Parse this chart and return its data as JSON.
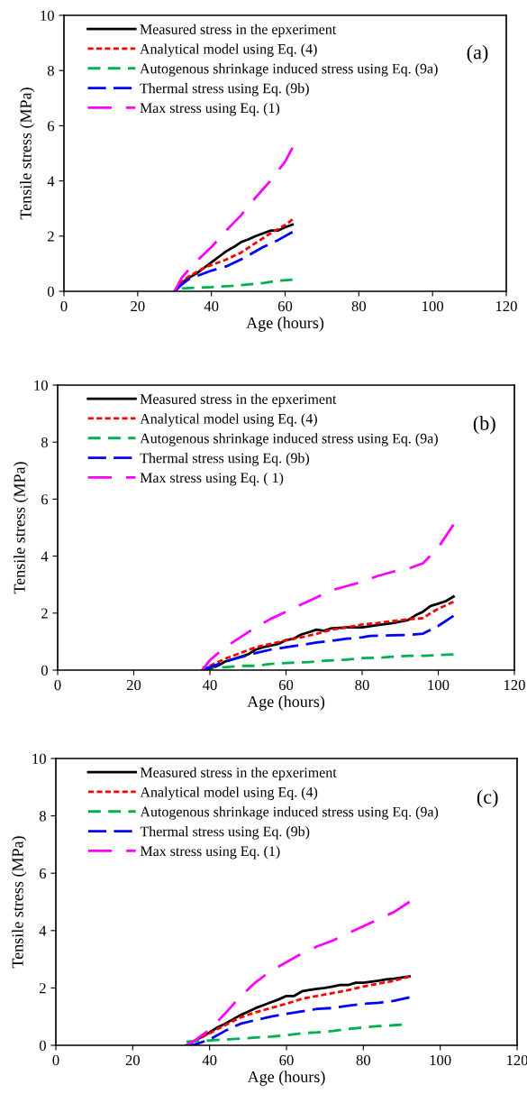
{
  "chart_data": [
    {
      "type": "line",
      "xlabel": "Age (hours)",
      "ylabel": "Tensile stress (MPa)",
      "xlim": [
        0,
        120
      ],
      "xticks": [
        0,
        20,
        40,
        60,
        80,
        100,
        120
      ],
      "ylim": [
        0,
        10
      ],
      "yticks": [
        0,
        2,
        4,
        6,
        8,
        10
      ],
      "legend": "top",
      "grid": false,
      "annotations": [
        "(a)"
      ],
      "series": [
        {
          "name": "Measured stress in the epxeriment",
          "color": "#000000",
          "line_style": "solid",
          "x": [
            30,
            32,
            34,
            36,
            38,
            40,
            42,
            44,
            46,
            48,
            50,
            52,
            54,
            56,
            58,
            60,
            62
          ],
          "values": [
            0,
            0.3,
            0.5,
            0.65,
            0.85,
            1.05,
            1.25,
            1.45,
            1.6,
            1.78,
            1.88,
            2.0,
            2.1,
            2.2,
            2.2,
            2.32,
            2.42
          ]
        },
        {
          "name": "Analytical model using Eq. (4)",
          "color": "#ff0000",
          "line_style": "dotted",
          "x": [
            30,
            32,
            34,
            36,
            38,
            40,
            44,
            48,
            52,
            56,
            60,
            62
          ],
          "values": [
            0,
            0.35,
            0.55,
            0.7,
            0.85,
            0.95,
            1.15,
            1.4,
            1.75,
            2.1,
            2.4,
            2.6
          ]
        },
        {
          "name": "Autogenous shrinkage induced stress using Eq. (9a)",
          "color": "#00b050",
          "line_style": "dashed",
          "x": [
            32,
            34,
            40,
            46,
            50,
            54,
            58,
            62
          ],
          "values": [
            0.1,
            0.12,
            0.15,
            0.2,
            0.25,
            0.3,
            0.38,
            0.42
          ]
        },
        {
          "name": "Thermal stress using Eq. (9b)",
          "color": "#0000ff",
          "line_style": "dashed",
          "x": [
            30,
            32,
            34,
            36,
            40,
            44,
            48,
            50,
            54,
            58,
            62
          ],
          "values": [
            0,
            0.25,
            0.45,
            0.55,
            0.75,
            0.9,
            1.15,
            1.3,
            1.6,
            1.85,
            2.15
          ]
        },
        {
          "name": "Max stress using Eq. (1)",
          "color": "#ff00ff",
          "line_style": "dashed",
          "x": [
            30,
            32,
            34,
            36,
            40,
            44,
            48,
            52,
            56,
            60,
            62
          ],
          "values": [
            0,
            0.5,
            0.8,
            1.1,
            1.6,
            2.2,
            2.75,
            3.4,
            4.0,
            4.7,
            5.2
          ]
        }
      ]
    },
    {
      "type": "line",
      "xlabel": "Age (hours)",
      "ylabel": "Tensile stress (MPa)",
      "xlim": [
        0,
        120
      ],
      "xticks": [
        0,
        20,
        40,
        60,
        80,
        100,
        120
      ],
      "ylim": [
        0,
        10
      ],
      "yticks": [
        0,
        2,
        4,
        6,
        8,
        10
      ],
      "legend": "top",
      "grid": false,
      "annotations": [
        "(b)"
      ],
      "series": [
        {
          "name": "Measured stress in the epxeriment",
          "color": "#000000",
          "line_style": "solid",
          "x": [
            38,
            40,
            42,
            44,
            46,
            50,
            52,
            54,
            58,
            60,
            62,
            64,
            66,
            68,
            70,
            72,
            76,
            80,
            84,
            88,
            92,
            94,
            96,
            98,
            100,
            102,
            104
          ],
          "values": [
            0,
            0.05,
            0.15,
            0.3,
            0.38,
            0.55,
            0.72,
            0.8,
            0.92,
            1.05,
            1.1,
            1.25,
            1.33,
            1.42,
            1.38,
            1.47,
            1.5,
            1.5,
            1.58,
            1.65,
            1.75,
            1.92,
            2.05,
            2.25,
            2.33,
            2.42,
            2.58
          ]
        },
        {
          "name": "Analytical model using Eq. (4)",
          "color": "#ff0000",
          "line_style": "dotted",
          "x": [
            38,
            40,
            44,
            48,
            52,
            56,
            60,
            64,
            68,
            72,
            76,
            80,
            84,
            88,
            92,
            96,
            98,
            100,
            104
          ],
          "values": [
            0,
            0.15,
            0.4,
            0.6,
            0.8,
            0.92,
            1.05,
            1.15,
            1.27,
            1.42,
            1.5,
            1.6,
            1.65,
            1.72,
            1.78,
            1.82,
            2.0,
            2.15,
            2.4
          ]
        },
        {
          "name": "Autogenous shrinkage induced stress using Eq. (9a)",
          "color": "#00b050",
          "line_style": "dashed",
          "x": [
            38,
            44,
            48,
            52,
            56,
            60,
            66,
            70,
            76,
            80,
            84,
            88,
            92,
            96,
            100,
            104
          ],
          "values": [
            0.1,
            0.1,
            0.15,
            0.15,
            0.22,
            0.25,
            0.28,
            0.33,
            0.37,
            0.42,
            0.43,
            0.47,
            0.5,
            0.5,
            0.53,
            0.55
          ]
        },
        {
          "name": "Thermal stress using Eq. (9b)",
          "color": "#0000ff",
          "line_style": "dashed",
          "x": [
            38,
            40,
            44,
            48,
            52,
            56,
            60,
            64,
            68,
            72,
            76,
            80,
            82,
            88,
            92,
            96,
            100,
            104
          ],
          "values": [
            0,
            0.1,
            0.3,
            0.45,
            0.6,
            0.72,
            0.8,
            0.88,
            0.97,
            1.03,
            1.1,
            1.15,
            1.2,
            1.22,
            1.23,
            1.28,
            1.55,
            1.9
          ]
        },
        {
          "name": "Max stress using Eq. ( 1)",
          "color": "#ff00ff",
          "line_style": "dashed",
          "x": [
            38,
            40,
            44,
            48,
            52,
            56,
            60,
            64,
            68,
            72,
            76,
            80,
            84,
            88,
            92,
            96,
            100,
            104
          ],
          "values": [
            0,
            0.35,
            0.8,
            1.15,
            1.5,
            1.8,
            2.05,
            2.3,
            2.55,
            2.8,
            2.95,
            3.1,
            3.3,
            3.45,
            3.55,
            3.75,
            4.3,
            5.1
          ]
        }
      ]
    },
    {
      "type": "line",
      "xlabel": "Age (hours)",
      "ylabel": "Tensile stress (MPa)",
      "xlim": [
        0,
        120
      ],
      "xticks": [
        0,
        20,
        40,
        60,
        80,
        100,
        120
      ],
      "ylim": [
        0,
        10
      ],
      "yticks": [
        0,
        2,
        4,
        6,
        8,
        10
      ],
      "legend": "top",
      "grid": false,
      "annotations": [
        "(c)"
      ],
      "series": [
        {
          "name": "Measured stress in the epxeriment",
          "color": "#000000",
          "line_style": "solid",
          "x": [
            34,
            36,
            38,
            40,
            42,
            44,
            46,
            48,
            50,
            52,
            54,
            56,
            58,
            60,
            62,
            64,
            66,
            68,
            70,
            72,
            74,
            76,
            78,
            80,
            84,
            86,
            88,
            92
          ],
          "values": [
            0,
            0.15,
            0.3,
            0.45,
            0.62,
            0.75,
            0.9,
            1.05,
            1.17,
            1.3,
            1.4,
            1.5,
            1.6,
            1.72,
            1.72,
            1.88,
            1.93,
            1.97,
            2.0,
            2.05,
            2.1,
            2.1,
            2.18,
            2.18,
            2.25,
            2.3,
            2.32,
            2.4
          ]
        },
        {
          "name": "Analytical model using Eq. (4)",
          "color": "#ff0000",
          "line_style": "dotted",
          "x": [
            34,
            36,
            40,
            44,
            48,
            52,
            56,
            60,
            64,
            68,
            72,
            76,
            80,
            84,
            88,
            92
          ],
          "values": [
            0,
            0.15,
            0.42,
            0.7,
            0.97,
            1.15,
            1.3,
            1.45,
            1.62,
            1.72,
            1.82,
            1.92,
            2.05,
            2.15,
            2.25,
            2.4
          ]
        },
        {
          "name": "Autogenous shrinkage induced stress using Eq. (9a)",
          "color": "#00b050",
          "line_style": "dashed",
          "x": [
            34,
            40,
            44,
            48,
            52,
            56,
            60,
            64,
            68,
            72,
            76,
            80,
            84,
            88,
            90
          ],
          "values": [
            0.13,
            0.17,
            0.2,
            0.23,
            0.27,
            0.3,
            0.35,
            0.42,
            0.45,
            0.5,
            0.57,
            0.62,
            0.67,
            0.7,
            0.72
          ]
        },
        {
          "name": "Thermal stress using Eq. (9b)",
          "color": "#0000ff",
          "line_style": "dashed",
          "x": [
            34,
            36,
            40,
            44,
            48,
            52,
            56,
            60,
            64,
            68,
            72,
            76,
            80,
            84,
            88,
            92
          ],
          "values": [
            0,
            0.02,
            0.2,
            0.5,
            0.75,
            0.88,
            1.0,
            1.1,
            1.18,
            1.27,
            1.3,
            1.38,
            1.45,
            1.48,
            1.55,
            1.67
          ]
        },
        {
          "name": "Max stress using Eq. (1)",
          "color": "#ff00ff",
          "line_style": "dashed",
          "x": [
            34,
            36,
            40,
            44,
            48,
            52,
            56,
            60,
            64,
            68,
            72,
            76,
            80,
            84,
            88,
            92
          ],
          "values": [
            0,
            0.15,
            0.55,
            1.1,
            1.7,
            2.2,
            2.6,
            2.9,
            3.2,
            3.45,
            3.65,
            3.9,
            4.15,
            4.4,
            4.65,
            5.0
          ]
        }
      ]
    }
  ]
}
